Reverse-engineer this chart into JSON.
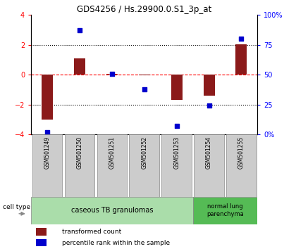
{
  "title": "GDS4256 / Hs.29900.0.S1_3p_at",
  "samples": [
    "GSM501249",
    "GSM501250",
    "GSM501251",
    "GSM501252",
    "GSM501253",
    "GSM501254",
    "GSM501255"
  ],
  "transformed_count": [
    -3.0,
    1.1,
    0.05,
    -0.05,
    -1.7,
    -1.4,
    2.05
  ],
  "percentile_rank": [
    2.0,
    87.0,
    51.0,
    38.0,
    7.0,
    24.0,
    80.0
  ],
  "ylim_left": [
    -4,
    4
  ],
  "ylim_right": [
    0,
    100
  ],
  "yticks_left": [
    -4,
    -2,
    0,
    2,
    4
  ],
  "yticks_right": [
    0,
    25,
    50,
    75,
    100
  ],
  "bar_color": "#8B1A1A",
  "scatter_color": "#0000CD",
  "cell_type_groups": [
    {
      "label": "caseous TB granulomas",
      "n_samples": 5,
      "color": "#AADDAA"
    },
    {
      "label": "normal lung\nparenchyma",
      "n_samples": 2,
      "color": "#55BB55"
    }
  ],
  "cell_type_label": "cell type",
  "legend_bar_label": "transformed count",
  "legend_scatter_label": "percentile rank within the sample",
  "bar_width": 0.35,
  "scatter_size": 25,
  "bg_color": "#FFFFFF",
  "gray_box_color": "#CCCCCC"
}
